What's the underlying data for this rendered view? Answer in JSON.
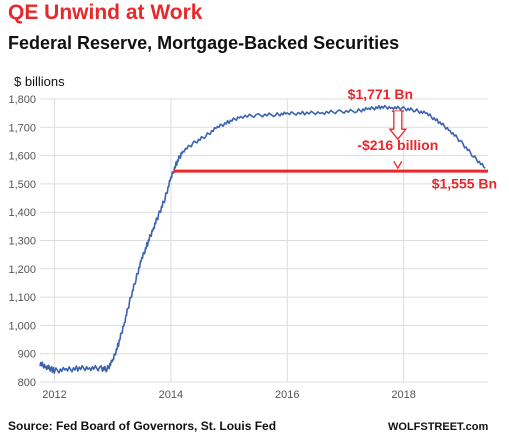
{
  "header": {
    "title": "QE Unwind at Work",
    "subtitle": "Federal Reserve, Mortgage-Backed Securities"
  },
  "footer": {
    "source": "Source: Fed Board of Governors, St. Louis Fed",
    "credit": "WOLFSTREET.com"
  },
  "colors": {
    "line": "#3b63b0",
    "accent": "#e8282b",
    "grid": "#dddddd",
    "axis_text": "#555555"
  },
  "chart_data": {
    "type": "line",
    "title": "QE Unwind at Work",
    "subtitle": "Federal Reserve, Mortgage-Backed Securities",
    "ylabel": "$ billions",
    "xlabel": "",
    "xlim": [
      2011.75,
      2019.45
    ],
    "ylim": [
      800,
      1800
    ],
    "x_ticks": [
      "2012",
      "2014",
      "2016",
      "2018"
    ],
    "y_ticks": [
      "800",
      "900",
      "1,000",
      "1,100",
      "1,200",
      "1,300",
      "1,400",
      "1,500",
      "1,600",
      "1,700",
      "1,800"
    ],
    "grid": true,
    "series": [
      {
        "x": [
          2011.75,
          2011.85,
          2011.95,
          2012.0,
          2012.2,
          2012.4,
          2012.6,
          2012.8,
          2012.9,
          2013.0,
          2013.1,
          2013.2,
          2013.3,
          2013.4,
          2013.5,
          2013.6,
          2013.7,
          2013.8,
          2013.9,
          2014.0,
          2014.1,
          2014.2,
          2014.4,
          2014.6,
          2014.8,
          2015.0,
          2015.2,
          2015.5,
          2015.8,
          2016.0,
          2016.3,
          2016.6,
          2016.9,
          2017.2,
          2017.4,
          2017.6,
          2017.8,
          2018.0,
          2018.2,
          2018.4,
          2018.6,
          2018.8,
          2019.0,
          2019.2,
          2019.4
        ],
        "y": [
          865,
          855,
          845,
          840,
          843,
          848,
          850,
          848,
          845,
          875,
          935,
          1010,
          1090,
          1165,
          1235,
          1290,
          1345,
          1395,
          1450,
          1520,
          1575,
          1615,
          1645,
          1670,
          1700,
          1720,
          1738,
          1742,
          1745,
          1748,
          1750,
          1752,
          1755,
          1758,
          1765,
          1771,
          1770,
          1766,
          1760,
          1748,
          1720,
          1688,
          1645,
          1598,
          1555
        ]
      }
    ],
    "baseline": {
      "value": 1545
    },
    "annotations": [
      {
        "text": "$1,771 Bn",
        "x": 2017.6,
        "y": 1771
      },
      {
        "text": "-$216 billion",
        "x": 2017.9,
        "y": 1620
      },
      {
        "text": "$1,555 Bn",
        "x": 2019.4,
        "y": 1555
      }
    ]
  }
}
